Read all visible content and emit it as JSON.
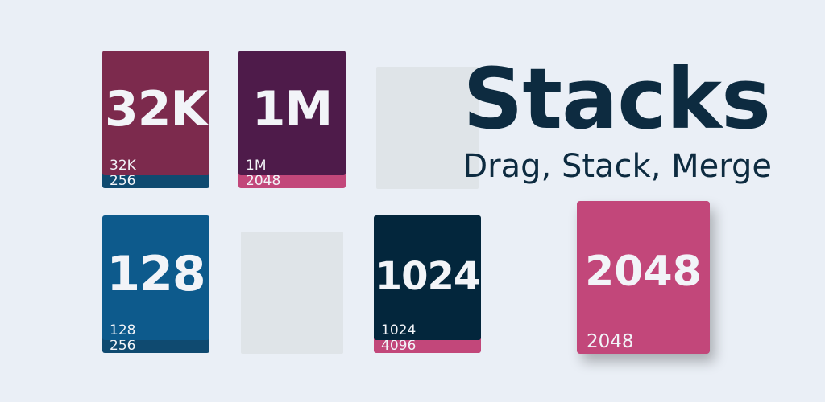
{
  "title": "Stacks",
  "subtitle": "Drag, Stack, Merge",
  "colors": {
    "background": "#eaeff6",
    "title": "#0d2b40",
    "slot": "#dfe4e8"
  },
  "board": {
    "stack_1": {
      "top": {
        "big": "32K",
        "small": "32K",
        "color": "#7c2a4d"
      },
      "under": {
        "small": "256",
        "color": "#0f4a70"
      }
    },
    "stack_2": {
      "top": {
        "big": "1M",
        "small": "1M",
        "color": "#4e1b4a"
      },
      "under": {
        "small": "2048",
        "color": "#c2477a"
      }
    },
    "stack_4": {
      "top": {
        "big": "128",
        "small": "128",
        "color": "#0d5a8c"
      },
      "under": {
        "small": "256",
        "color": "#0f4a70"
      }
    },
    "stack_6": {
      "top": {
        "big": "1024",
        "small": "1024",
        "color": "#03263c"
      },
      "under": {
        "small": "4096",
        "color": "#c2477a"
      }
    }
  },
  "dragged_card": {
    "big": "2048",
    "small": "2048",
    "color": "#c2477a"
  }
}
